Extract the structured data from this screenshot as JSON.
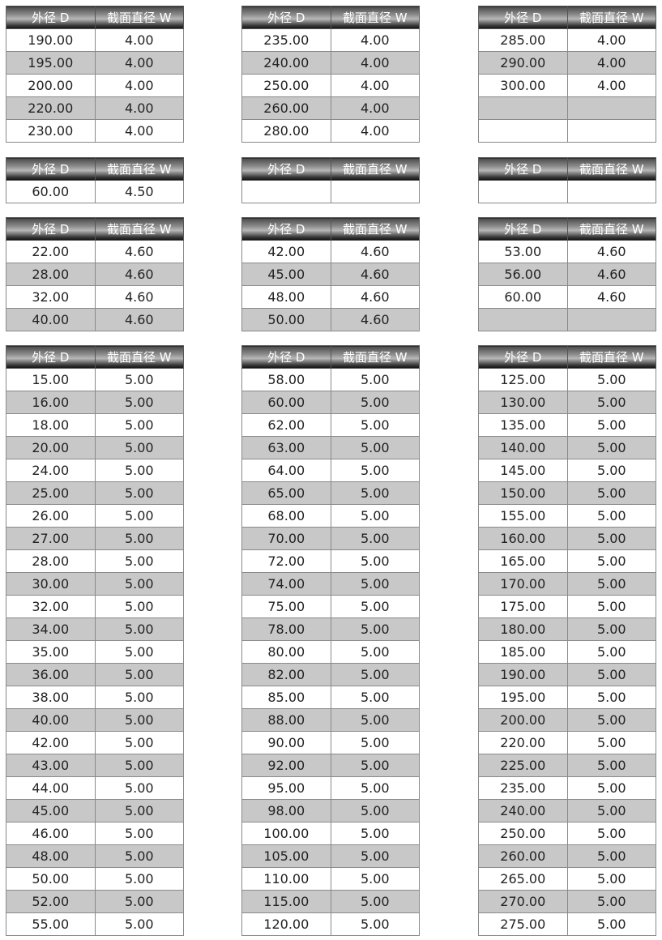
{
  "header": {
    "col1": "外径 D",
    "col2": "截面直径 W"
  },
  "groups": [
    {
      "w": "4.00",
      "columns": [
        {
          "rows": [
            [
              "190.00",
              "4.00"
            ],
            [
              "195.00",
              "4.00"
            ],
            [
              "200.00",
              "4.00"
            ],
            [
              "220.00",
              "4.00"
            ],
            [
              "230.00",
              "4.00"
            ]
          ]
        },
        {
          "rows": [
            [
              "235.00",
              "4.00"
            ],
            [
              "240.00",
              "4.00"
            ],
            [
              "250.00",
              "4.00"
            ],
            [
              "260.00",
              "4.00"
            ],
            [
              "280.00",
              "4.00"
            ]
          ]
        },
        {
          "rows": [
            [
              "285.00",
              "4.00"
            ],
            [
              "290.00",
              "4.00"
            ],
            [
              "300.00",
              "4.00"
            ],
            [
              "",
              ""
            ],
            [
              "",
              ""
            ]
          ]
        }
      ]
    },
    {
      "w": "4.50",
      "columns": [
        {
          "rows": [
            [
              "60.00",
              "4.50"
            ]
          ]
        },
        {
          "rows": [
            [
              "",
              ""
            ]
          ]
        },
        {
          "rows": [
            [
              "",
              ""
            ]
          ]
        }
      ]
    },
    {
      "w": "4.60",
      "columns": [
        {
          "rows": [
            [
              "22.00",
              "4.60"
            ],
            [
              "28.00",
              "4.60"
            ],
            [
              "32.00",
              "4.60"
            ],
            [
              "40.00",
              "4.60"
            ]
          ]
        },
        {
          "rows": [
            [
              "42.00",
              "4.60"
            ],
            [
              "45.00",
              "4.60"
            ],
            [
              "48.00",
              "4.60"
            ],
            [
              "50.00",
              "4.60"
            ]
          ]
        },
        {
          "rows": [
            [
              "53.00",
              "4.60"
            ],
            [
              "56.00",
              "4.60"
            ],
            [
              "60.00",
              "4.60"
            ],
            [
              "",
              ""
            ]
          ]
        }
      ]
    },
    {
      "w": "5.00",
      "columns": [
        {
          "rows": [
            [
              "15.00",
              "5.00"
            ],
            [
              "16.00",
              "5.00"
            ],
            [
              "18.00",
              "5.00"
            ],
            [
              "20.00",
              "5.00"
            ],
            [
              "24.00",
              "5.00"
            ],
            [
              "25.00",
              "5.00"
            ],
            [
              "26.00",
              "5.00"
            ],
            [
              "27.00",
              "5.00"
            ],
            [
              "28.00",
              "5.00"
            ],
            [
              "30.00",
              "5.00"
            ],
            [
              "32.00",
              "5.00"
            ],
            [
              "34.00",
              "5.00"
            ],
            [
              "35.00",
              "5.00"
            ],
            [
              "36.00",
              "5.00"
            ],
            [
              "38.00",
              "5.00"
            ],
            [
              "40.00",
              "5.00"
            ],
            [
              "42.00",
              "5.00"
            ],
            [
              "43.00",
              "5.00"
            ],
            [
              "44.00",
              "5.00"
            ],
            [
              "45.00",
              "5.00"
            ],
            [
              "46.00",
              "5.00"
            ],
            [
              "48.00",
              "5.00"
            ],
            [
              "50.00",
              "5.00"
            ],
            [
              "52.00",
              "5.00"
            ],
            [
              "55.00",
              "5.00"
            ]
          ]
        },
        {
          "rows": [
            [
              "58.00",
              "5.00"
            ],
            [
              "60.00",
              "5.00"
            ],
            [
              "62.00",
              "5.00"
            ],
            [
              "63.00",
              "5.00"
            ],
            [
              "64.00",
              "5.00"
            ],
            [
              "65.00",
              "5.00"
            ],
            [
              "68.00",
              "5.00"
            ],
            [
              "70.00",
              "5.00"
            ],
            [
              "72.00",
              "5.00"
            ],
            [
              "74.00",
              "5.00"
            ],
            [
              "75.00",
              "5.00"
            ],
            [
              "78.00",
              "5.00"
            ],
            [
              "80.00",
              "5.00"
            ],
            [
              "82.00",
              "5.00"
            ],
            [
              "85.00",
              "5.00"
            ],
            [
              "88.00",
              "5.00"
            ],
            [
              "90.00",
              "5.00"
            ],
            [
              "92.00",
              "5.00"
            ],
            [
              "95.00",
              "5.00"
            ],
            [
              "98.00",
              "5.00"
            ],
            [
              "100.00",
              "5.00"
            ],
            [
              "105.00",
              "5.00"
            ],
            [
              "110.00",
              "5.00"
            ],
            [
              "115.00",
              "5.00"
            ],
            [
              "120.00",
              "5.00"
            ]
          ]
        },
        {
          "rows": [
            [
              "125.00",
              "5.00"
            ],
            [
              "130.00",
              "5.00"
            ],
            [
              "135.00",
              "5.00"
            ],
            [
              "140.00",
              "5.00"
            ],
            [
              "145.00",
              "5.00"
            ],
            [
              "150.00",
              "5.00"
            ],
            [
              "155.00",
              "5.00"
            ],
            [
              "160.00",
              "5.00"
            ],
            [
              "165.00",
              "5.00"
            ],
            [
              "170.00",
              "5.00"
            ],
            [
              "175.00",
              "5.00"
            ],
            [
              "180.00",
              "5.00"
            ],
            [
              "185.00",
              "5.00"
            ],
            [
              "190.00",
              "5.00"
            ],
            [
              "195.00",
              "5.00"
            ],
            [
              "200.00",
              "5.00"
            ],
            [
              "220.00",
              "5.00"
            ],
            [
              "225.00",
              "5.00"
            ],
            [
              "235.00",
              "5.00"
            ],
            [
              "240.00",
              "5.00"
            ],
            [
              "250.00",
              "5.00"
            ],
            [
              "260.00",
              "5.00"
            ],
            [
              "265.00",
              "5.00"
            ],
            [
              "270.00",
              "5.00"
            ],
            [
              "275.00",
              "5.00"
            ]
          ]
        }
      ]
    }
  ]
}
